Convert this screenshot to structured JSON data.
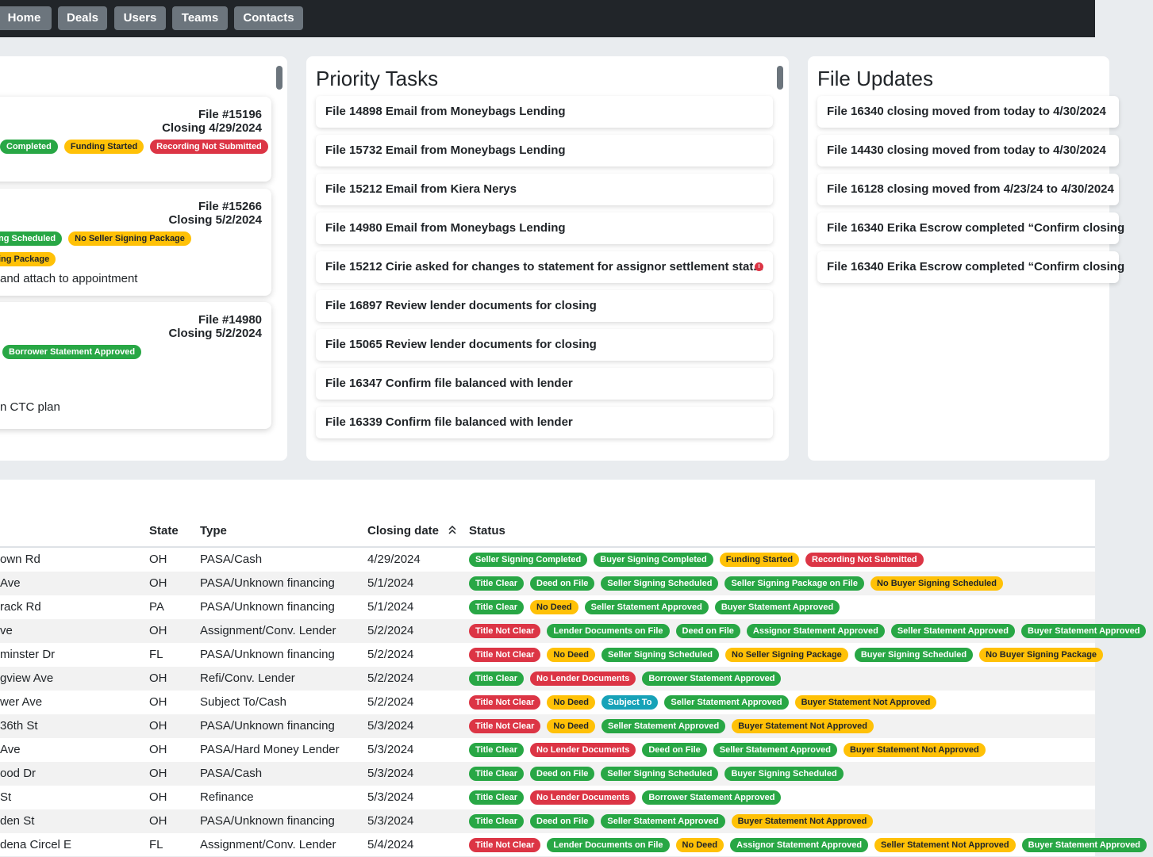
{
  "nav": [
    "Home",
    "Deals",
    "Users",
    "Teams",
    "Contacts"
  ],
  "panels": {
    "priority_title": "Priority Tasks",
    "updates_title": "File Updates"
  },
  "closings": [
    {
      "file": "File #15196",
      "closing": "Closing 4/29/2024",
      "badge_rows": [
        [
          [
            "Completed",
            "green"
          ],
          [
            "Funding Started",
            "yellow"
          ],
          [
            "Recording Not Submitted",
            "red"
          ]
        ]
      ],
      "note": ""
    },
    {
      "file": "File #15266",
      "closing": "Closing 5/2/2024",
      "badge_rows": [
        [
          [
            "ng Scheduled",
            "green"
          ],
          [
            "No Seller Signing Package",
            "yellow"
          ]
        ],
        [
          [
            "ing Package",
            "yellow"
          ]
        ]
      ],
      "note": "and attach to appointment"
    },
    {
      "file": "File #14980",
      "closing": "Closing 5/2/2024",
      "badge_rows": [
        [
          [
            "Borrower Statement Approved",
            "green"
          ]
        ]
      ],
      "note": "n CTC plan"
    }
  ],
  "tasks": [
    {
      "text": "File 14898 Email from Moneybags Lending",
      "alert": false
    },
    {
      "text": "File 15732 Email from Moneybags Lending",
      "alert": false
    },
    {
      "text": "File 15212 Email from Kiera Nerys",
      "alert": false
    },
    {
      "text": "File 14980 Email from Moneybags Lending",
      "alert": false
    },
    {
      "text": "File 15212 Cirie asked for changes to statement for assignor settlement stat...",
      "alert": true
    },
    {
      "text": "File 16897 Review lender documents for closing",
      "alert": false
    },
    {
      "text": "File 15065 Review lender documents for closing",
      "alert": false
    },
    {
      "text": "File 16347 Confirm file balanced with lender",
      "alert": false
    },
    {
      "text": "File 16339 Confirm file balanced with lender",
      "alert": false
    }
  ],
  "updates": [
    "File 16340 closing moved from today to 4/30/2024",
    "File 14430 closing moved from today to 4/30/2024",
    "File 16128 closing moved from 4/23/24 to 4/30/2024",
    "File 16340 Erika Escrow completed “Confirm closing",
    "File 16340 Erika Escrow completed “Confirm closing"
  ],
  "table": {
    "headers": {
      "state": "State",
      "type": "Type",
      "closing": "Closing date",
      "status": "Status"
    },
    "rows": [
      {
        "addr": "own Rd",
        "state": "OH",
        "type": "PASA/Cash",
        "date": "4/29/2024",
        "status": [
          [
            "Seller Signing Completed",
            "green"
          ],
          [
            "Buyer Signing Completed",
            "green"
          ],
          [
            "Funding Started",
            "yellow"
          ],
          [
            "Recording Not Submitted",
            "red"
          ]
        ]
      },
      {
        "addr": "Ave",
        "state": "OH",
        "type": "PASA/Unknown financing",
        "date": "5/1/2024",
        "status": [
          [
            "Title Clear",
            "green"
          ],
          [
            "Deed on File",
            "green"
          ],
          [
            "Seller Signing Scheduled",
            "green"
          ],
          [
            "Seller Signing Package on File",
            "green"
          ],
          [
            "No Buyer Signing Scheduled",
            "yellow"
          ]
        ]
      },
      {
        "addr": "rack Rd",
        "state": "PA",
        "type": "PASA/Unknown financing",
        "date": "5/1/2024",
        "status": [
          [
            "Title Clear",
            "green"
          ],
          [
            "No Deed",
            "yellow"
          ],
          [
            "Seller Statement Approved",
            "green"
          ],
          [
            "Buyer Statement Approved",
            "green"
          ]
        ]
      },
      {
        "addr": "ve",
        "state": "OH",
        "type": "Assignment/Conv. Lender",
        "date": "5/2/2024",
        "status": [
          [
            "Title Not Clear",
            "red"
          ],
          [
            "Lender Documents on File",
            "green"
          ],
          [
            "Deed on File",
            "green"
          ],
          [
            "Assignor Statement Approved",
            "green"
          ],
          [
            "Seller Statement Approved",
            "green"
          ],
          [
            "Buyer Statement Approved",
            "green"
          ]
        ]
      },
      {
        "addr": "minster Dr",
        "state": "FL",
        "type": "PASA/Unknown financing",
        "date": "5/2/2024",
        "status": [
          [
            "Title Not Clear",
            "red"
          ],
          [
            "No Deed",
            "yellow"
          ],
          [
            "Seller Signing Scheduled",
            "green"
          ],
          [
            "No Seller Signing Package",
            "yellow"
          ],
          [
            "Buyer Signing Scheduled",
            "green"
          ],
          [
            "No Buyer Signing Package",
            "yellow"
          ]
        ]
      },
      {
        "addr": "gview Ave",
        "state": "OH",
        "type": "Refi/Conv. Lender",
        "date": "5/2/2024",
        "status": [
          [
            "Title Clear",
            "green"
          ],
          [
            "No Lender Documents",
            "red"
          ],
          [
            "Borrower Statement Approved",
            "green"
          ]
        ]
      },
      {
        "addr": "wer Ave",
        "state": "OH",
        "type": "Subject To/Cash",
        "date": "5/2/2024",
        "status": [
          [
            "Title Not Clear",
            "red"
          ],
          [
            "No Deed",
            "yellow"
          ],
          [
            "Subject To",
            "blue"
          ],
          [
            "Seller Statement Approved",
            "green"
          ],
          [
            "Buyer Statement Not Approved",
            "yellow"
          ]
        ]
      },
      {
        "addr": "36th St",
        "state": "OH",
        "type": "PASA/Unknown financing",
        "date": "5/3/2024",
        "status": [
          [
            "Title Not Clear",
            "red"
          ],
          [
            "No Deed",
            "yellow"
          ],
          [
            "Seller Statement Approved",
            "green"
          ],
          [
            "Buyer Statement Not Approved",
            "yellow"
          ]
        ]
      },
      {
        "addr": "Ave",
        "state": "OH",
        "type": "PASA/Hard Money Lender",
        "date": "5/3/2024",
        "status": [
          [
            "Title Clear",
            "green"
          ],
          [
            "No Lender Documents",
            "red"
          ],
          [
            "Deed on File",
            "green"
          ],
          [
            "Seller Statement Approved",
            "green"
          ],
          [
            "Buyer Statement Not Approved",
            "yellow"
          ]
        ]
      },
      {
        "addr": "ood Dr",
        "state": "OH",
        "type": "PASA/Cash",
        "date": "5/3/2024",
        "status": [
          [
            "Title Clear",
            "green"
          ],
          [
            "Deed on File",
            "green"
          ],
          [
            "Seller Signing Scheduled",
            "green"
          ],
          [
            "Buyer Signing Scheduled",
            "green"
          ]
        ]
      },
      {
        "addr": "St",
        "state": "OH",
        "type": "Refinance",
        "date": "5/3/2024",
        "status": [
          [
            "Title Clear",
            "green"
          ],
          [
            "No Lender Documents",
            "red"
          ],
          [
            "Borrower Statement Approved",
            "green"
          ]
        ]
      },
      {
        "addr": "den St",
        "state": "OH",
        "type": "PASA/Unknown financing",
        "date": "5/3/2024",
        "status": [
          [
            "Title Clear",
            "green"
          ],
          [
            "Deed on File",
            "green"
          ],
          [
            "Seller Statement Approved",
            "green"
          ],
          [
            "Buyer Statement Not Approved",
            "yellow"
          ]
        ]
      },
      {
        "addr": "dena Circel E",
        "state": "FL",
        "type": "Assignment/Conv. Lender",
        "date": "5/4/2024",
        "status": [
          [
            "Title Not Clear",
            "red"
          ],
          [
            "Lender Documents on File",
            "green"
          ],
          [
            "No Deed",
            "yellow"
          ],
          [
            "Assignor Statement Approved",
            "green"
          ],
          [
            "Seller Statement Not Approved",
            "yellow"
          ],
          [
            "Buyer Statement Approved",
            "green"
          ]
        ]
      }
    ]
  },
  "colors": {
    "green": "#28a745",
    "yellow": "#ffc107",
    "red": "#dc3545",
    "blue": "#17a2b8",
    "nav": "#212529"
  }
}
